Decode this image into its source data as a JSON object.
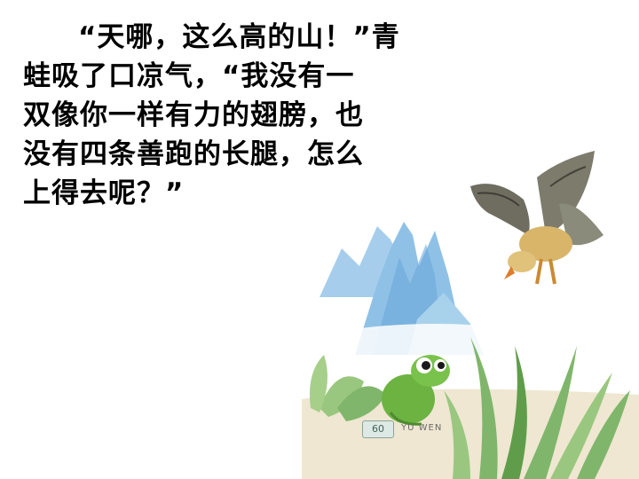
{
  "story": {
    "lines": [
      "“天哪，这么高的山！”青",
      "蛙吸了口凉气，“我没有一",
      "双像你一样有力的翅膀，也",
      "没有四条善跑的长腿，怎么",
      "上得去呢？”"
    ]
  },
  "page_label": "60",
  "series_label": "YU WEN",
  "illustration": {
    "mountain_color": "#8fc1e6",
    "grass_color": "#7fb66b",
    "frog_color": "#6cb342",
    "eagle_color": "#6f6d5f"
  }
}
